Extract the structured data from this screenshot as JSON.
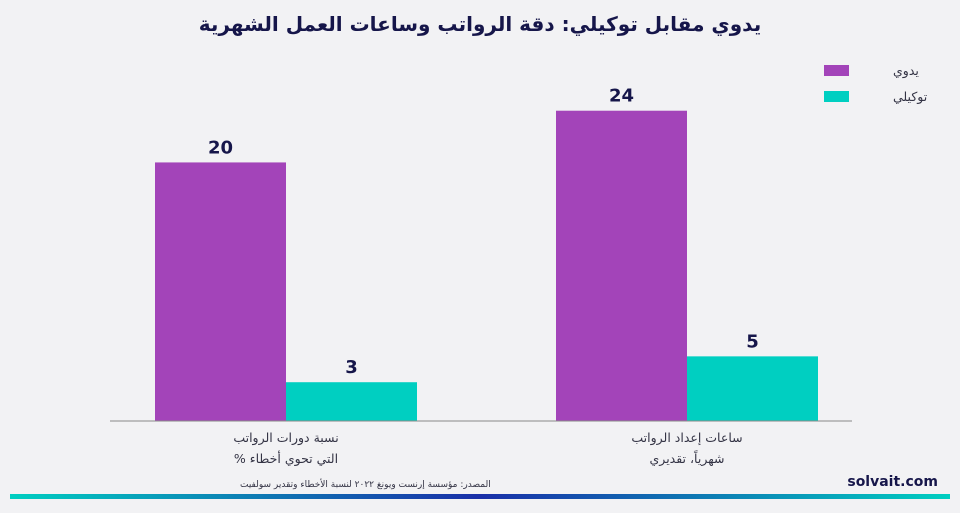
{
  "chart_data": {
    "type": "bar",
    "title": "يدوي مقابل توكيلي: دقة الرواتب وساعات العمل الشهرية",
    "categories": [
      [
        "نسبة دورات الرواتب",
        "التي تحوي أخطاء %"
      ],
      [
        "ساعات إعداد الرواتب",
        "شهرياً، تقديري"
      ]
    ],
    "series": [
      {
        "name": "يدوي",
        "values": [
          20,
          24
        ],
        "color": "#a344b9"
      },
      {
        "name": "توكيلي",
        "values": [
          3,
          5
        ],
        "color": "#00cfc1"
      }
    ],
    "ylim": [
      0,
      28
    ],
    "xlabel": "",
    "ylabel": "",
    "grid": false,
    "legend": "top-right",
    "show_values": true
  },
  "footer": {
    "source": "المصدر: مؤسسة إرنست ويونغ ٢٠٢٢ لنسبة الأخطاء وتقدير سولفيت",
    "brand": "solvait.com"
  },
  "colors": {
    "background": "#f2f2f4",
    "axis": "#888888",
    "gradient_start": "#00cfc1",
    "gradient_end": "#1a2fa8"
  }
}
